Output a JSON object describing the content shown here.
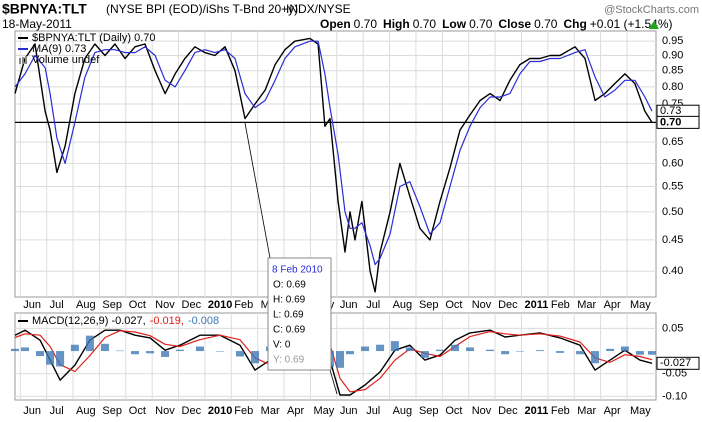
{
  "header": {
    "symbol": "$BPNYA:TLT",
    "description": "(NYSE BPI (EOD)/iShs T-Bnd 20+y)",
    "exchange": "INDX/NYSE",
    "date": "18-May-2011",
    "brand": "@StockCharts.com",
    "quote": [
      {
        "label": "Open",
        "value": "0.70"
      },
      {
        "label": "High",
        "value": "0.70"
      },
      {
        "label": "Low",
        "value": "0.70"
      },
      {
        "label": "Close",
        "value": "0.70"
      },
      {
        "label": "Chg",
        "value": "+0.01 (+1.54%)"
      }
    ]
  },
  "tooltip": {
    "date": "8 Feb 2010",
    "lines": [
      "O: 0.69",
      "H: 0.69",
      "L: 0.69",
      "C: 0.69",
      "V: 0",
      "Y: 0.69"
    ]
  },
  "chart_data": [
    {
      "type": "line",
      "log_scale": true,
      "grid": true,
      "legend_extra": "Volume undef",
      "x": [
        -0.2,
        0.18,
        0.56,
        0.94,
        1.13,
        1.39,
        1.7,
        2.07,
        2.45,
        2.83,
        3.21,
        3.59,
        3.97,
        4.35,
        4.73,
        5.11,
        5.49,
        5.87,
        6.24,
        6.62,
        7.0,
        7.38,
        7.76,
        8.14,
        8.52,
        8.9,
        9.28,
        9.66,
        10.03,
        10.41,
        10.98,
        11.29,
        11.55,
        11.74,
        12.05,
        12.31,
        12.5,
        12.69,
        12.95,
        13.26,
        13.45,
        13.64,
        14.02,
        14.39,
        14.77,
        15.15,
        15.53,
        15.91,
        16.29,
        16.67,
        17.05,
        17.43,
        17.81,
        18.19,
        18.56,
        18.94,
        19.32,
        19.7,
        20.08,
        20.46,
        21.03,
        21.41,
        21.79,
        22.16,
        22.54,
        22.92,
        23.3,
        23.68,
        23.95
      ],
      "series": [
        {
          "name": "$BPNYA:TLT (Daily) 0.70",
          "color": "#000000",
          "values": [
            0.78,
            0.89,
            0.94,
            0.73,
            0.68,
            0.58,
            0.64,
            0.78,
            0.89,
            0.94,
            0.9,
            0.94,
            0.89,
            0.93,
            0.94,
            0.85,
            0.78,
            0.84,
            0.89,
            0.93,
            0.91,
            0.9,
            0.93,
            0.85,
            0.71,
            0.75,
            0.79,
            0.87,
            0.92,
            0.95,
            0.96,
            0.94,
            0.69,
            0.71,
            0.52,
            0.43,
            0.5,
            0.45,
            0.52,
            0.4,
            0.37,
            0.43,
            0.5,
            0.6,
            0.53,
            0.47,
            0.45,
            0.52,
            0.59,
            0.68,
            0.72,
            0.76,
            0.78,
            0.76,
            0.82,
            0.87,
            0.89,
            0.89,
            0.9,
            0.9,
            0.93,
            0.89,
            0.76,
            0.78,
            0.81,
            0.84,
            0.81,
            0.73,
            0.7
          ]
        },
        {
          "name": "MA(9) 0.73",
          "color": "#2b2bd6",
          "values": [
            0.8,
            0.84,
            0.9,
            0.86,
            0.78,
            0.66,
            0.6,
            0.7,
            0.83,
            0.91,
            0.92,
            0.92,
            0.91,
            0.91,
            0.93,
            0.9,
            0.82,
            0.8,
            0.85,
            0.91,
            0.92,
            0.91,
            0.92,
            0.89,
            0.78,
            0.74,
            0.76,
            0.82,
            0.89,
            0.93,
            0.95,
            0.95,
            0.84,
            0.74,
            0.62,
            0.5,
            0.47,
            0.47,
            0.48,
            0.44,
            0.41,
            0.42,
            0.46,
            0.55,
            0.56,
            0.51,
            0.46,
            0.48,
            0.55,
            0.63,
            0.69,
            0.74,
            0.77,
            0.77,
            0.78,
            0.84,
            0.88,
            0.88,
            0.89,
            0.89,
            0.91,
            0.92,
            0.83,
            0.77,
            0.79,
            0.82,
            0.82,
            0.77,
            0.73
          ]
        }
      ],
      "xlim": [
        -0.2,
        24.1
      ],
      "xticks": [
        {
          "value": 0,
          "label": "Jun"
        },
        {
          "value": 1,
          "label": "Jul"
        },
        {
          "value": 2,
          "label": "Aug"
        },
        {
          "value": 3,
          "label": "Sep"
        },
        {
          "value": 4,
          "label": "Oct"
        },
        {
          "value": 5,
          "label": "Nov"
        },
        {
          "value": 6,
          "label": "Dec"
        },
        {
          "value": 7,
          "label": "2010"
        },
        {
          "value": 8,
          "label": "Feb"
        },
        {
          "value": 9,
          "label": "Mar"
        },
        {
          "value": 10,
          "label": "Apr"
        },
        {
          "value": 11,
          "label": "May"
        },
        {
          "value": 12,
          "label": "Jun"
        },
        {
          "value": 13,
          "label": "Jul"
        },
        {
          "value": 14,
          "label": "Aug"
        },
        {
          "value": 15,
          "label": "Sep"
        },
        {
          "value": 16,
          "label": "Oct"
        },
        {
          "value": 17,
          "label": "Nov"
        },
        {
          "value": 18,
          "label": "Dec"
        },
        {
          "value": 19,
          "label": "2011"
        },
        {
          "value": 20,
          "label": "Feb"
        },
        {
          "value": 21,
          "label": "Mar"
        },
        {
          "value": 22,
          "label": "Apr"
        },
        {
          "value": 23,
          "label": "May"
        }
      ],
      "ylim": [
        0.363,
        0.987
      ],
      "yticks": [
        0.95,
        {
          "value": 0.9,
          "label": "0.90"
        },
        0.85,
        {
          "value": 0.8,
          "label": "0.80"
        },
        0.75,
        0.65,
        {
          "value": 0.6,
          "label": "0.60"
        },
        0.55,
        {
          "value": 0.5,
          "label": "0.50"
        },
        0.45,
        {
          "value": 0.4,
          "label": "0.40"
        }
      ],
      "reference_line": 0.7,
      "tags": [
        0.73,
        {
          "value": 0.7,
          "label": "0.70"
        }
      ]
    },
    {
      "type": "line",
      "log_scale": false,
      "grid": true,
      "x": [
        -0.2,
        0.18,
        0.75,
        1.13,
        1.51,
        2.07,
        2.64,
        3.21,
        3.78,
        4.35,
        4.92,
        5.49,
        6.05,
        6.81,
        7.57,
        8.33,
        8.9,
        9.47,
        10.03,
        10.6,
        11.17,
        11.74,
        12.12,
        12.5,
        13.07,
        13.64,
        14.2,
        14.77,
        15.34,
        15.91,
        16.48,
        17.05,
        17.81,
        18.38,
        18.94,
        19.7,
        20.46,
        21.22,
        21.79,
        22.36,
        22.92,
        23.49,
        23.95
      ],
      "series": [
        {
          "name": "MACD(12,26,9) -0.027,",
          "color": "#000000",
          "values": [
            0.035,
            0.046,
            0.024,
            -0.02,
            -0.064,
            -0.031,
            0.024,
            0.046,
            0.046,
            0.035,
            0.029,
            0.002,
            0.013,
            0.035,
            0.035,
            0.013,
            -0.042,
            -0.02,
            0.024,
            0.046,
            0.046,
            -0.02,
            -0.097,
            -0.097,
            -0.075,
            -0.046,
            0.002,
            0.013,
            -0.02,
            -0.009,
            0.024,
            0.04,
            0.046,
            0.031,
            0.035,
            0.04,
            0.029,
            0.013,
            -0.042,
            -0.02,
            0.002,
            -0.02,
            -0.027
          ]
        },
        {
          "name": "-0.019,",
          "color": "#e0201b",
          "values": [
            0.03,
            0.038,
            0.035,
            0.01,
            -0.03,
            -0.045,
            -0.01,
            0.03,
            0.045,
            0.042,
            0.034,
            0.015,
            0.01,
            0.025,
            0.035,
            0.025,
            -0.015,
            -0.03,
            0.0,
            0.035,
            0.046,
            0.015,
            -0.06,
            -0.09,
            -0.085,
            -0.06,
            -0.02,
            0.005,
            -0.005,
            -0.012,
            0.01,
            0.032,
            0.043,
            0.038,
            0.035,
            0.038,
            0.033,
            0.02,
            -0.015,
            -0.025,
            -0.008,
            -0.012,
            -0.019
          ]
        },
        {
          "name": "-0.008",
          "color": "#3d78b5",
          "kind": "bar",
          "values": [
            0.005,
            0.008,
            -0.011,
            -0.03,
            -0.034,
            0.014,
            0.034,
            0.016,
            0.001,
            -0.007,
            -0.005,
            -0.013,
            0.003,
            0.01,
            0,
            -0.012,
            -0.027,
            0.01,
            0.024,
            0.011,
            0,
            -0.035,
            -0.037,
            -0.007,
            0.01,
            0.014,
            0.022,
            0.008,
            -0.015,
            0.003,
            0.014,
            0.008,
            0.003,
            -0.007,
            0,
            0.002,
            -0.004,
            -0.007,
            -0.027,
            0.005,
            0.01,
            -0.008,
            -0.008
          ]
        }
      ],
      "xlim": [
        -0.2,
        24.1
      ],
      "xticks": [
        {
          "value": 0,
          "label": "Jun"
        },
        {
          "value": 1,
          "label": "Jul"
        },
        {
          "value": 2,
          "label": "Aug"
        },
        {
          "value": 3,
          "label": "Sep"
        },
        {
          "value": 4,
          "label": "Oct"
        },
        {
          "value": 5,
          "label": "Nov"
        },
        {
          "value": 6,
          "label": "Dec"
        },
        {
          "value": 7,
          "label": "2010"
        },
        {
          "value": 8,
          "label": "Feb"
        },
        {
          "value": 9,
          "label": "Mar"
        },
        {
          "value": 10,
          "label": "Apr"
        },
        {
          "value": 11,
          "label": "May"
        },
        {
          "value": 12,
          "label": "Jun"
        },
        {
          "value": 13,
          "label": "Jul"
        },
        {
          "value": 14,
          "label": "Aug"
        },
        {
          "value": 15,
          "label": "Sep"
        },
        {
          "value": 16,
          "label": "Oct"
        },
        {
          "value": 17,
          "label": "Nov"
        },
        {
          "value": 18,
          "label": "Dec"
        },
        {
          "value": 19,
          "label": "2011"
        },
        {
          "value": 20,
          "label": "Feb"
        },
        {
          "value": 21,
          "label": "Mar"
        },
        {
          "value": 22,
          "label": "Apr"
        },
        {
          "value": 23,
          "label": "May"
        }
      ],
      "ylim": [
        -0.108,
        0.084
      ],
      "yticks": [
        0.05,
        -0.05,
        {
          "value": -0.1,
          "label": "-0.10"
        }
      ],
      "tags": [
        -0.027
      ]
    }
  ]
}
